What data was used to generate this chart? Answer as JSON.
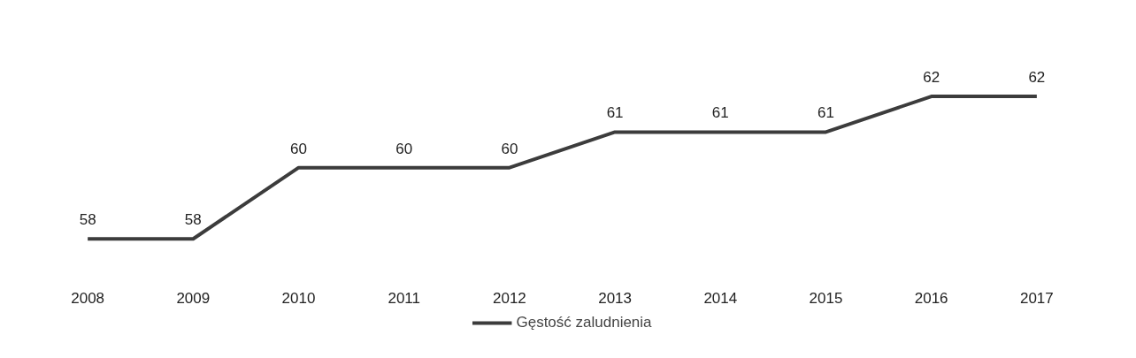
{
  "chart_data": {
    "type": "line",
    "categories": [
      "2008",
      "2009",
      "2010",
      "2011",
      "2012",
      "2013",
      "2014",
      "2015",
      "2016",
      "2017"
    ],
    "series": [
      {
        "name": "Gęstość zaludnienia",
        "color": "#3c3c3c",
        "values": [
          58,
          58,
          60,
          60,
          60,
          61,
          61,
          61,
          62,
          62
        ]
      }
    ],
    "data_labels": true,
    "legend": "bottom",
    "tick_labels": "x",
    "line_style": "solid"
  }
}
